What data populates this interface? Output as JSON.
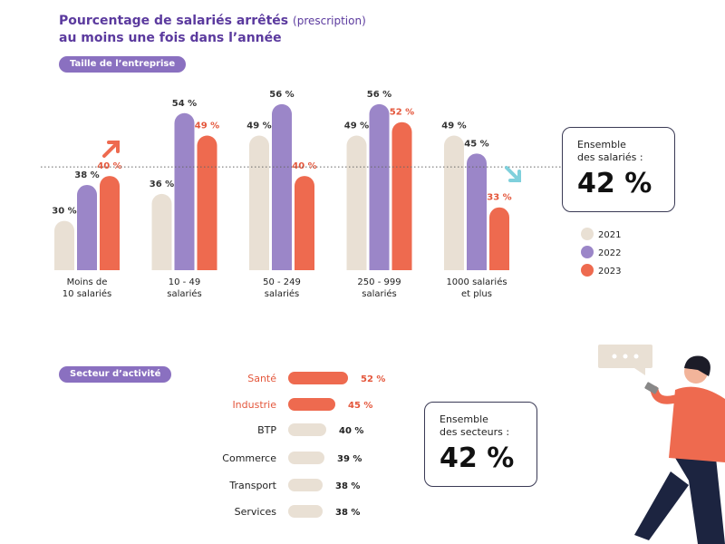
{
  "chart_data": [
    {
      "type": "bar",
      "title": "Pourcentage de salariés arrêtés",
      "title_note": "(prescription)",
      "subtitle": "au moins une fois dans l’année",
      "section": "Taille de l’entreprise",
      "categories": [
        "Moins de\n10 salariés",
        "10 - 49\nsalariés",
        "50 - 249\nsalariés",
        "250 - 999\nsalariés",
        "1000 salariés\net plus"
      ],
      "series": [
        {
          "name": "2021",
          "color": "#e9e0d4",
          "label_color": "#333333",
          "values": [
            30,
            36,
            49,
            49,
            49
          ],
          "value_labels": [
            "30 %",
            "36 %",
            "49 %",
            "49 %",
            "49 %"
          ]
        },
        {
          "name": "2022",
          "color": "#9b86c8",
          "label_color": "#333333",
          "values": [
            38,
            54,
            56,
            56,
            45
          ],
          "value_labels": [
            "38 %",
            "54 %",
            "56 %",
            "56 %",
            "45 %"
          ]
        },
        {
          "name": "2023",
          "color": "#ee6a4f",
          "label_color": "#e4573c",
          "values": [
            40,
            49,
            40,
            52,
            33
          ],
          "value_labels": [
            "40 %",
            "49 %",
            "40 %",
            "52 %",
            "33 %"
          ]
        }
      ],
      "ylim": [
        19,
        58
      ],
      "callout": {
        "text": "Ensemble\ndes salariés :",
        "value": 42,
        "label": "42 %"
      }
    },
    {
      "type": "hbar",
      "section": "Secteur d’activité",
      "categories": [
        "Santé",
        "Industrie",
        "BTP",
        "Commerce",
        "Transport",
        "Services"
      ],
      "values": [
        52,
        45,
        40,
        39,
        38,
        38
      ],
      "value_labels": [
        "52 %",
        "45 %",
        "40 %",
        "39 %",
        "38 %",
        "38 %"
      ],
      "colors": [
        "#ee6a4f",
        "#ee6a4f",
        "#e9e0d4",
        "#e9e0d4",
        "#e9e0d4",
        "#e9e0d4"
      ],
      "label_colors": [
        "#e4573c",
        "#e4573c",
        "#222222",
        "#222222",
        "#222222",
        "#222222"
      ],
      "xlim": [
        19,
        52
      ],
      "callout": {
        "text": "Ensemble\ndes secteurs :",
        "value": 42,
        "label": "42 %"
      }
    }
  ]
}
